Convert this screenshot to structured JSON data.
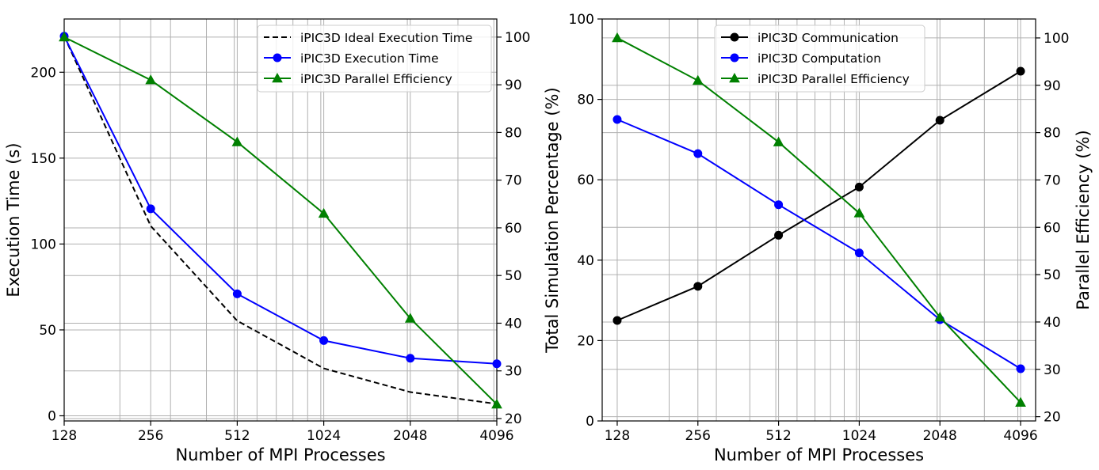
{
  "chart_data": [
    {
      "type": "line",
      "x_scale": "log2",
      "x": [
        128,
        256,
        512,
        1024,
        2048,
        4096
      ],
      "xticklabels": [
        "128",
        "256",
        "512",
        "1024",
        "2048",
        "4096"
      ],
      "xlabel": "Number of MPI Processes",
      "ylabel": "Execution Time (s)",
      "ylim": [
        -3,
        231
      ],
      "yticks": [
        0,
        50,
        100,
        150,
        200
      ],
      "y2lim": [
        19.5,
        103.8
      ],
      "y2ticks": [
        20,
        30,
        40,
        50,
        60,
        70,
        80,
        90,
        100
      ],
      "y2label": "",
      "grid": true,
      "legend_position": "top-right",
      "series": [
        {
          "name": "iPIC3D Ideal Execution Time",
          "axis": "left",
          "values": [
            221,
            110.5,
            55.3,
            27.6,
            13.8,
            6.9
          ],
          "color": "#000000",
          "style": "dashed",
          "marker": "none"
        },
        {
          "name": "iPIC3D Execution Time",
          "axis": "left",
          "values": [
            221,
            120.5,
            71,
            43.8,
            33.5,
            30.3
          ],
          "color": "#0000ff",
          "style": "solid",
          "marker": "circle"
        },
        {
          "name": "iPIC3D Parallel Efficiency",
          "axis": "right",
          "values": [
            100,
            91,
            78,
            63,
            41,
            23
          ],
          "color": "#008000",
          "style": "solid",
          "marker": "triangle"
        }
      ]
    },
    {
      "type": "line",
      "x_scale": "log2",
      "x": [
        128,
        256,
        512,
        1024,
        2048,
        4096
      ],
      "xticklabels": [
        "128",
        "256",
        "512",
        "1024",
        "2048",
        "4096"
      ],
      "xlabel": "Number of MPI Processes",
      "ylabel": "Total Simulation Percentage (%)",
      "ylim": [
        0,
        100
      ],
      "yticks": [
        0,
        20,
        40,
        60,
        80,
        100
      ],
      "y2lim": [
        19.1,
        104.0
      ],
      "y2ticks": [
        20,
        30,
        40,
        50,
        60,
        70,
        80,
        90,
        100
      ],
      "y2label": "Parallel Efficiency (%)",
      "grid": true,
      "legend_position": "top-center",
      "series": [
        {
          "name": "iPIC3D Communication",
          "axis": "left",
          "values": [
            25,
            33.5,
            46.2,
            58.2,
            74.8,
            87
          ],
          "color": "#000000",
          "style": "solid",
          "marker": "circle"
        },
        {
          "name": "iPIC3D Computation",
          "axis": "left",
          "values": [
            75,
            66.5,
            53.8,
            41.8,
            25.2,
            13
          ],
          "color": "#0000ff",
          "style": "solid",
          "marker": "circle"
        },
        {
          "name": "iPIC3D Parallel Efficiency",
          "axis": "right",
          "values": [
            100,
            91,
            78,
            63,
            41,
            23
          ],
          "color": "#008000",
          "style": "solid",
          "marker": "triangle"
        }
      ]
    }
  ]
}
